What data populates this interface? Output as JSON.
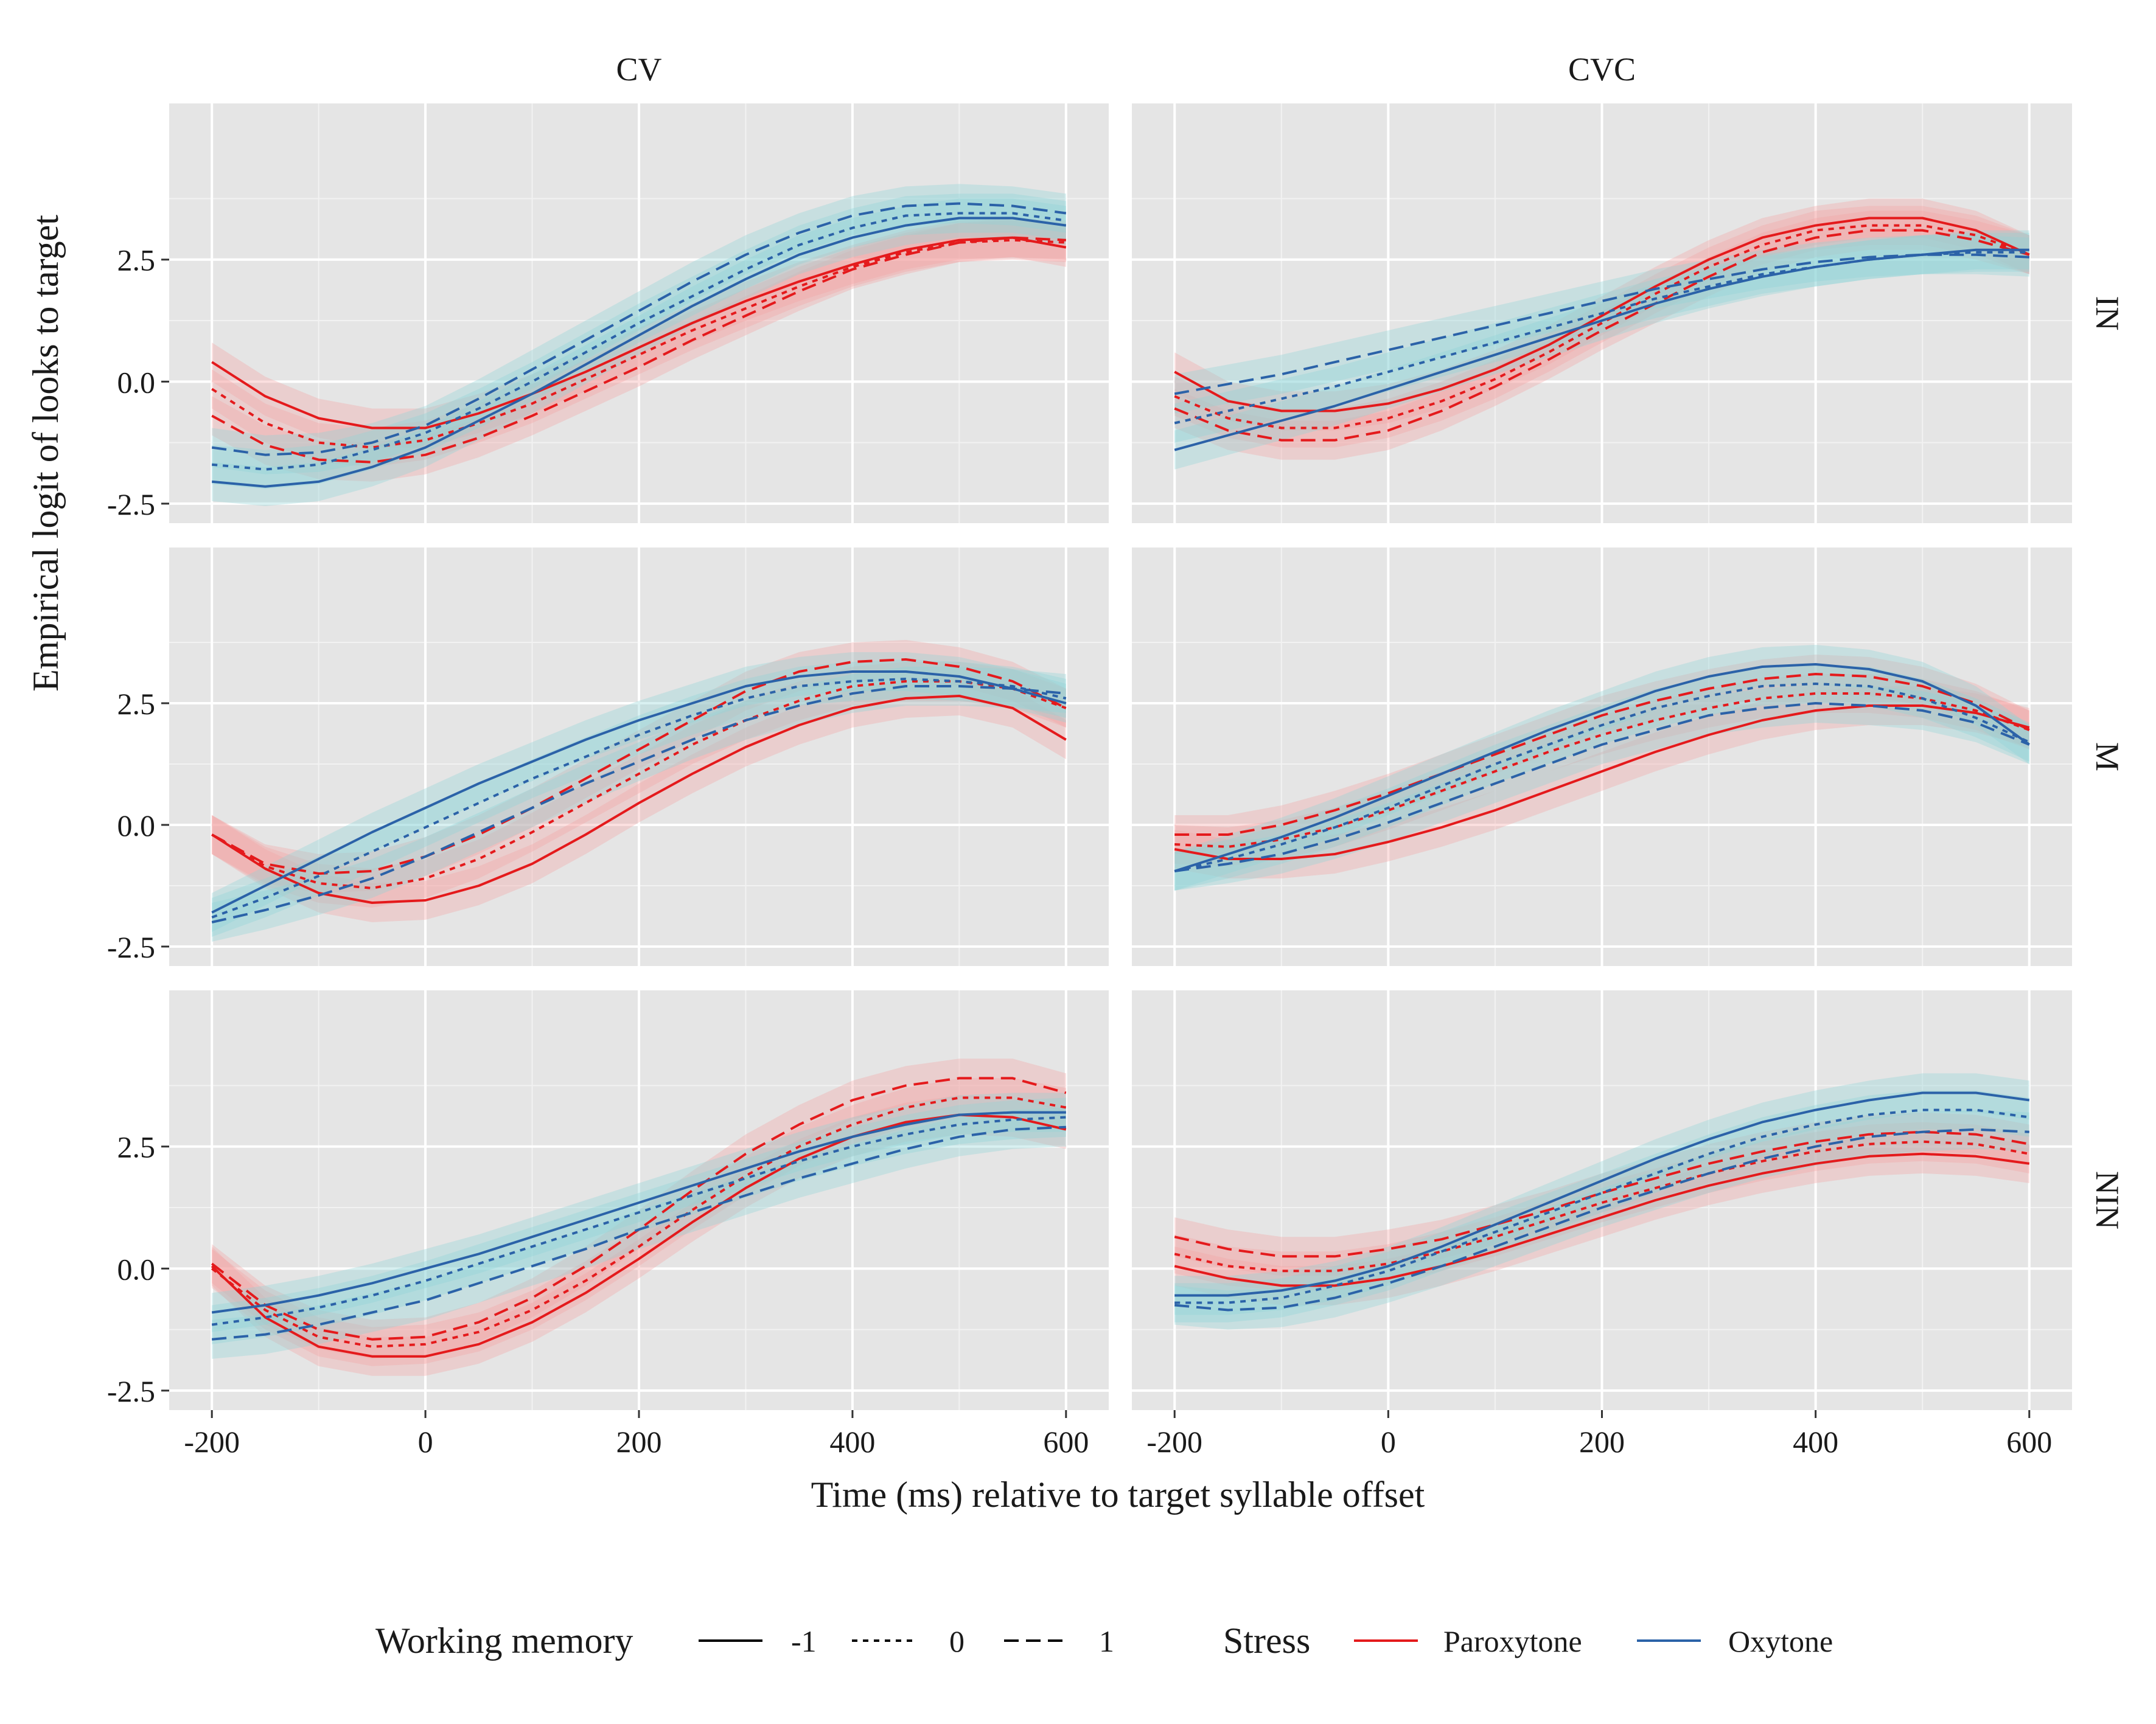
{
  "chart_data": {
    "type": "line",
    "title": "",
    "xlabel": "Time (ms) relative to target syllable offset",
    "ylabel": "Empirical logit of looks to target",
    "xlim": [
      -240,
      640
    ],
    "ylim": [
      -2.9,
      5.7
    ],
    "x_ticks": [
      -200,
      0,
      200,
      400,
      600
    ],
    "x_tick_labels": [
      "-200",
      "0",
      "200",
      "400",
      "600"
    ],
    "y_ticks": [
      -2.5,
      0,
      2.5
    ],
    "y_tick_labels": [
      "-2.5",
      "0.0",
      "2.5"
    ],
    "grid": true,
    "legend_position": "bottom",
    "col_facets": [
      "CV",
      "CVC"
    ],
    "row_facets": [
      "IN",
      "M",
      "NIN"
    ],
    "x": [
      -200,
      -150,
      -100,
      -50,
      0,
      50,
      100,
      150,
      200,
      250,
      300,
      350,
      400,
      450,
      500,
      550,
      600
    ],
    "ribbon_halfwidth": 0.4,
    "legends": {
      "linetype": {
        "title": "Working memory",
        "entries": [
          "-1",
          "0",
          "1"
        ]
      },
      "color": {
        "title": "Stress",
        "entries": [
          "Paroxytone",
          "Oxytone"
        ]
      }
    },
    "colors": {
      "Paroxytone": "#e41a1c",
      "Oxytone": "#2b62a8",
      "Paroxytone_band": "#f4a2a2",
      "Oxytone_band": "#8fd3d6",
      "panel": "#e5e5e5"
    },
    "panels": [
      {
        "col": "CV",
        "row": "IN",
        "series": [
          {
            "stress": "Paroxytone",
            "wm": "-1",
            "values": [
              0.4,
              -0.3,
              -0.75,
              -0.95,
              -0.95,
              -0.65,
              -0.25,
              0.2,
              0.7,
              1.2,
              1.65,
              2.05,
              2.4,
              2.7,
              2.9,
              2.95,
              2.75
            ]
          },
          {
            "stress": "Paroxytone",
            "wm": "0",
            "values": [
              -0.15,
              -0.85,
              -1.25,
              -1.35,
              -1.2,
              -0.85,
              -0.45,
              0.05,
              0.55,
              1.05,
              1.5,
              1.95,
              2.35,
              2.65,
              2.85,
              2.9,
              2.85
            ]
          },
          {
            "stress": "Paroxytone",
            "wm": "1",
            "values": [
              -0.7,
              -1.3,
              -1.6,
              -1.65,
              -1.5,
              -1.15,
              -0.7,
              -0.2,
              0.3,
              0.85,
              1.35,
              1.85,
              2.3,
              2.6,
              2.85,
              2.95,
              2.9
            ]
          },
          {
            "stress": "Oxytone",
            "wm": "-1",
            "values": [
              -2.05,
              -2.15,
              -2.05,
              -1.75,
              -1.35,
              -0.8,
              -0.25,
              0.35,
              0.95,
              1.55,
              2.1,
              2.6,
              2.95,
              3.2,
              3.35,
              3.35,
              3.2
            ]
          },
          {
            "stress": "Oxytone",
            "wm": "0",
            "values": [
              -1.7,
              -1.8,
              -1.7,
              -1.4,
              -1.05,
              -0.55,
              0.0,
              0.6,
              1.2,
              1.75,
              2.3,
              2.8,
              3.15,
              3.4,
              3.45,
              3.45,
              3.3
            ]
          },
          {
            "stress": "Oxytone",
            "wm": "1",
            "values": [
              -1.35,
              -1.5,
              -1.45,
              -1.25,
              -0.9,
              -0.35,
              0.25,
              0.85,
              1.45,
              2.05,
              2.6,
              3.05,
              3.4,
              3.6,
              3.65,
              3.6,
              3.45
            ]
          }
        ]
      },
      {
        "col": "CVC",
        "row": "IN",
        "series": [
          {
            "stress": "Paroxytone",
            "wm": "-1",
            "values": [
              0.2,
              -0.4,
              -0.6,
              -0.6,
              -0.45,
              -0.15,
              0.25,
              0.75,
              1.35,
              1.95,
              2.5,
              2.95,
              3.2,
              3.35,
              3.35,
              3.1,
              2.6
            ]
          },
          {
            "stress": "Paroxytone",
            "wm": "0",
            "values": [
              -0.3,
              -0.75,
              -0.95,
              -0.95,
              -0.75,
              -0.4,
              0.05,
              0.6,
              1.2,
              1.8,
              2.35,
              2.8,
              3.1,
              3.2,
              3.2,
              3.0,
              2.6
            ]
          },
          {
            "stress": "Paroxytone",
            "wm": "1",
            "values": [
              -0.55,
              -1.0,
              -1.2,
              -1.2,
              -1.0,
              -0.6,
              -0.1,
              0.45,
              1.05,
              1.6,
              2.15,
              2.65,
              2.95,
              3.1,
              3.1,
              2.9,
              2.6
            ]
          },
          {
            "stress": "Oxytone",
            "wm": "-1",
            "values": [
              -1.4,
              -1.1,
              -0.8,
              -0.5,
              -0.15,
              0.2,
              0.55,
              0.9,
              1.25,
              1.6,
              1.9,
              2.15,
              2.35,
              2.5,
              2.6,
              2.7,
              2.7
            ]
          },
          {
            "stress": "Oxytone",
            "wm": "0",
            "values": [
              -0.85,
              -0.6,
              -0.35,
              -0.1,
              0.2,
              0.5,
              0.8,
              1.1,
              1.4,
              1.7,
              1.95,
              2.2,
              2.35,
              2.5,
              2.6,
              2.65,
              2.65
            ]
          },
          {
            "stress": "Oxytone",
            "wm": "1",
            "values": [
              -0.25,
              -0.05,
              0.15,
              0.4,
              0.65,
              0.9,
              1.15,
              1.4,
              1.65,
              1.9,
              2.1,
              2.3,
              2.45,
              2.55,
              2.6,
              2.6,
              2.55
            ]
          }
        ]
      },
      {
        "col": "CV",
        "row": "M",
        "series": [
          {
            "stress": "Paroxytone",
            "wm": "-1",
            "values": [
              -0.2,
              -0.9,
              -1.4,
              -1.6,
              -1.55,
              -1.25,
              -0.8,
              -0.2,
              0.45,
              1.05,
              1.6,
              2.05,
              2.4,
              2.6,
              2.65,
              2.4,
              1.75
            ]
          },
          {
            "stress": "Paroxytone",
            "wm": "0",
            "values": [
              -0.2,
              -0.85,
              -1.2,
              -1.3,
              -1.1,
              -0.7,
              -0.15,
              0.45,
              1.05,
              1.65,
              2.15,
              2.55,
              2.85,
              2.95,
              2.95,
              2.8,
              2.4
            ]
          },
          {
            "stress": "Paroxytone",
            "wm": "1",
            "values": [
              -0.2,
              -0.8,
              -1.0,
              -0.95,
              -0.65,
              -0.2,
              0.35,
              0.95,
              1.55,
              2.15,
              2.75,
              3.15,
              3.35,
              3.4,
              3.25,
              2.95,
              2.4
            ]
          },
          {
            "stress": "Oxytone",
            "wm": "-1",
            "values": [
              -1.8,
              -1.25,
              -0.7,
              -0.15,
              0.35,
              0.85,
              1.3,
              1.75,
              2.15,
              2.5,
              2.85,
              3.05,
              3.15,
              3.15,
              3.05,
              2.8,
              2.5
            ]
          },
          {
            "stress": "Oxytone",
            "wm": "0",
            "values": [
              -1.9,
              -1.5,
              -1.05,
              -0.55,
              -0.05,
              0.45,
              0.95,
              1.4,
              1.85,
              2.25,
              2.6,
              2.85,
              2.95,
              3.0,
              2.95,
              2.85,
              2.6
            ]
          },
          {
            "stress": "Oxytone",
            "wm": "1",
            "values": [
              -2.0,
              -1.75,
              -1.45,
              -1.1,
              -0.65,
              -0.15,
              0.35,
              0.85,
              1.3,
              1.75,
              2.15,
              2.45,
              2.7,
              2.85,
              2.85,
              2.8,
              2.7
            ]
          }
        ]
      },
      {
        "col": "CVC",
        "row": "M",
        "series": [
          {
            "stress": "Paroxytone",
            "wm": "-1",
            "values": [
              -0.5,
              -0.7,
              -0.7,
              -0.6,
              -0.35,
              -0.05,
              0.3,
              0.7,
              1.1,
              1.5,
              1.85,
              2.15,
              2.35,
              2.45,
              2.45,
              2.3,
              2.0
            ]
          },
          {
            "stress": "Paroxytone",
            "wm": "0",
            "values": [
              -0.4,
              -0.45,
              -0.3,
              -0.05,
              0.3,
              0.7,
              1.1,
              1.5,
              1.85,
              2.15,
              2.4,
              2.6,
              2.7,
              2.7,
              2.6,
              2.35,
              1.95
            ]
          },
          {
            "stress": "Paroxytone",
            "wm": "1",
            "values": [
              -0.2,
              -0.2,
              0.0,
              0.3,
              0.65,
              1.05,
              1.45,
              1.85,
              2.25,
              2.55,
              2.8,
              3.0,
              3.1,
              3.05,
              2.85,
              2.5,
              1.95
            ]
          },
          {
            "stress": "Oxytone",
            "wm": "-1",
            "values": [
              -0.95,
              -0.6,
              -0.25,
              0.15,
              0.6,
              1.05,
              1.5,
              1.95,
              2.35,
              2.75,
              3.05,
              3.25,
              3.3,
              3.2,
              2.95,
              2.45,
              1.65
            ]
          },
          {
            "stress": "Oxytone",
            "wm": "0",
            "values": [
              -0.95,
              -0.7,
              -0.4,
              -0.05,
              0.35,
              0.8,
              1.25,
              1.65,
              2.05,
              2.4,
              2.65,
              2.85,
              2.9,
              2.85,
              2.6,
              2.2,
              1.7
            ]
          },
          {
            "stress": "Oxytone",
            "wm": "1",
            "values": [
              -0.95,
              -0.8,
              -0.6,
              -0.3,
              0.05,
              0.45,
              0.85,
              1.25,
              1.65,
              1.95,
              2.25,
              2.4,
              2.5,
              2.45,
              2.35,
              2.1,
              1.65
            ]
          }
        ]
      },
      {
        "col": "CV",
        "row": "NIN",
        "series": [
          {
            "stress": "Paroxytone",
            "wm": "-1",
            "values": [
              0.05,
              -1.0,
              -1.6,
              -1.8,
              -1.8,
              -1.55,
              -1.1,
              -0.5,
              0.2,
              0.95,
              1.65,
              2.25,
              2.7,
              3.0,
              3.15,
              3.1,
              2.85
            ]
          },
          {
            "stress": "Paroxytone",
            "wm": "0",
            "values": [
              0.0,
              -0.85,
              -1.4,
              -1.6,
              -1.55,
              -1.3,
              -0.85,
              -0.25,
              0.45,
              1.2,
              1.9,
              2.5,
              2.95,
              3.3,
              3.5,
              3.5,
              3.3
            ]
          },
          {
            "stress": "Paroxytone",
            "wm": "1",
            "values": [
              0.1,
              -0.75,
              -1.25,
              -1.45,
              -1.4,
              -1.1,
              -0.6,
              0.05,
              0.8,
              1.6,
              2.35,
              2.95,
              3.45,
              3.75,
              3.9,
              3.9,
              3.6
            ]
          },
          {
            "stress": "Oxytone",
            "wm": "-1",
            "values": [
              -0.9,
              -0.75,
              -0.55,
              -0.3,
              0.0,
              0.3,
              0.65,
              1.0,
              1.35,
              1.7,
              2.05,
              2.4,
              2.7,
              2.95,
              3.15,
              3.2,
              3.2
            ]
          },
          {
            "stress": "Oxytone",
            "wm": "0",
            "values": [
              -1.15,
              -1.0,
              -0.8,
              -0.55,
              -0.25,
              0.1,
              0.45,
              0.8,
              1.15,
              1.5,
              1.85,
              2.2,
              2.5,
              2.75,
              2.95,
              3.05,
              3.1
            ]
          },
          {
            "stress": "Oxytone",
            "wm": "1",
            "values": [
              -1.45,
              -1.35,
              -1.15,
              -0.9,
              -0.65,
              -0.3,
              0.05,
              0.4,
              0.8,
              1.15,
              1.5,
              1.85,
              2.15,
              2.45,
              2.7,
              2.85,
              2.9
            ]
          }
        ]
      },
      {
        "col": "CVC",
        "row": "NIN",
        "series": [
          {
            "stress": "Paroxytone",
            "wm": "-1",
            "values": [
              0.05,
              -0.2,
              -0.35,
              -0.35,
              -0.2,
              0.05,
              0.35,
              0.7,
              1.05,
              1.4,
              1.7,
              1.95,
              2.15,
              2.3,
              2.35,
              2.3,
              2.15
            ]
          },
          {
            "stress": "Paroxytone",
            "wm": "0",
            "values": [
              0.3,
              0.05,
              -0.05,
              -0.05,
              0.1,
              0.35,
              0.65,
              1.0,
              1.35,
              1.65,
              1.95,
              2.2,
              2.4,
              2.55,
              2.6,
              2.55,
              2.35
            ]
          },
          {
            "stress": "Paroxytone",
            "wm": "1",
            "values": [
              0.65,
              0.4,
              0.25,
              0.25,
              0.4,
              0.6,
              0.9,
              1.2,
              1.55,
              1.85,
              2.15,
              2.4,
              2.6,
              2.75,
              2.8,
              2.75,
              2.55
            ]
          },
          {
            "stress": "Oxytone",
            "wm": "-1",
            "values": [
              -0.55,
              -0.55,
              -0.45,
              -0.25,
              0.05,
              0.45,
              0.9,
              1.35,
              1.8,
              2.25,
              2.65,
              3.0,
              3.25,
              3.45,
              3.6,
              3.6,
              3.45
            ]
          },
          {
            "stress": "Oxytone",
            "wm": "0",
            "values": [
              -0.7,
              -0.7,
              -0.6,
              -0.35,
              -0.05,
              0.35,
              0.75,
              1.15,
              1.55,
              1.95,
              2.35,
              2.7,
              2.95,
              3.15,
              3.25,
              3.25,
              3.1
            ]
          },
          {
            "stress": "Oxytone",
            "wm": "1",
            "values": [
              -0.75,
              -0.85,
              -0.8,
              -0.6,
              -0.3,
              0.05,
              0.45,
              0.85,
              1.25,
              1.6,
              1.95,
              2.25,
              2.5,
              2.7,
              2.8,
              2.85,
              2.8
            ]
          }
        ]
      }
    ]
  }
}
